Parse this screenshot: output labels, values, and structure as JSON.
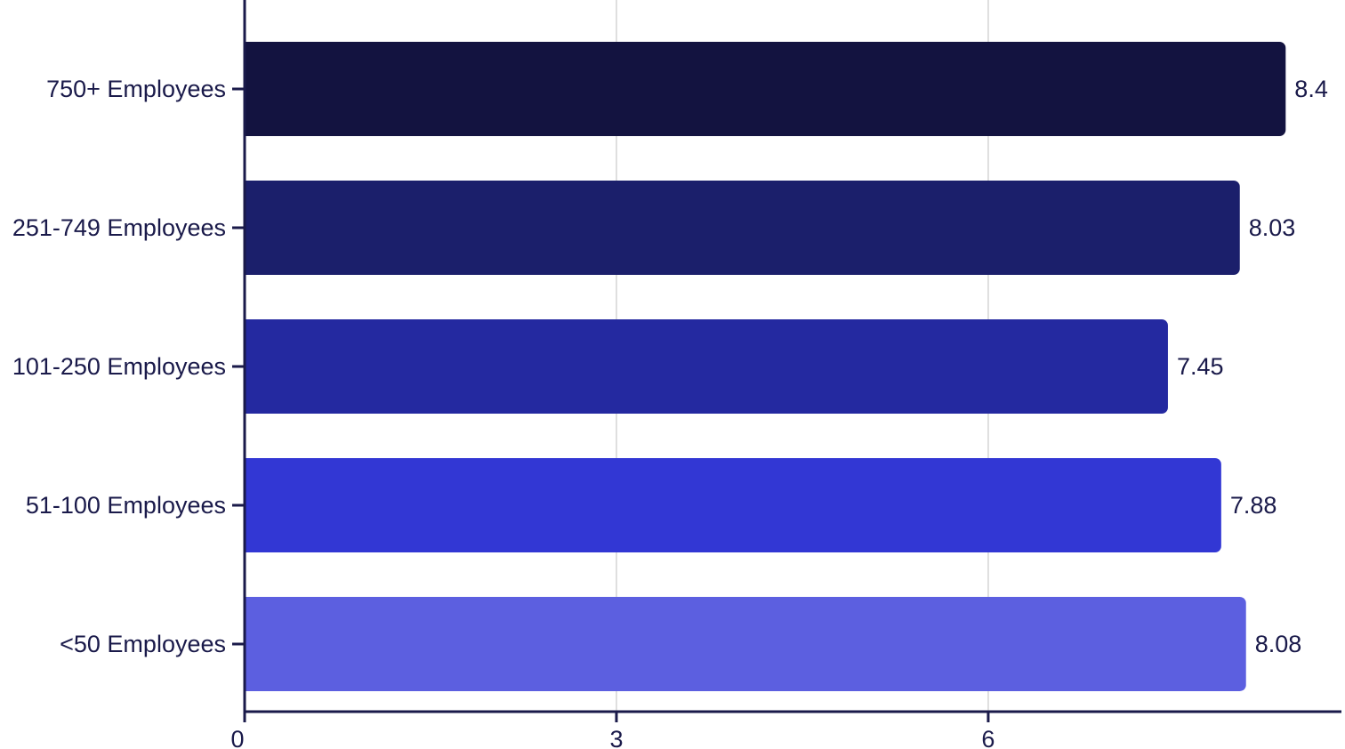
{
  "chart_data": {
    "type": "bar",
    "orientation": "horizontal",
    "categories": [
      "750+ Employees",
      "251-749 Employees",
      "101-250 Employees",
      "51-100 Employees",
      "<50 Employees"
    ],
    "values": [
      8.4,
      8.03,
      7.45,
      7.88,
      8.08
    ],
    "value_labels": [
      "8.4",
      "8.03",
      "7.45",
      "7.88",
      "8.08"
    ],
    "bar_colors": [
      "#131340",
      "#1b1f6b",
      "#2429a0",
      "#3237d4",
      "#5c5fe0"
    ],
    "x_ticks": [
      0,
      3,
      6
    ],
    "x_tick_labels": [
      "0",
      "3",
      "6"
    ],
    "xlim": [
      0,
      8.85
    ],
    "grid": "vertical",
    "title": "",
    "xlabel": "",
    "ylabel": "",
    "text_color": "#1a1a4a",
    "axis_color": "#1a1a4a",
    "grid_color": "#d4d4d4"
  }
}
